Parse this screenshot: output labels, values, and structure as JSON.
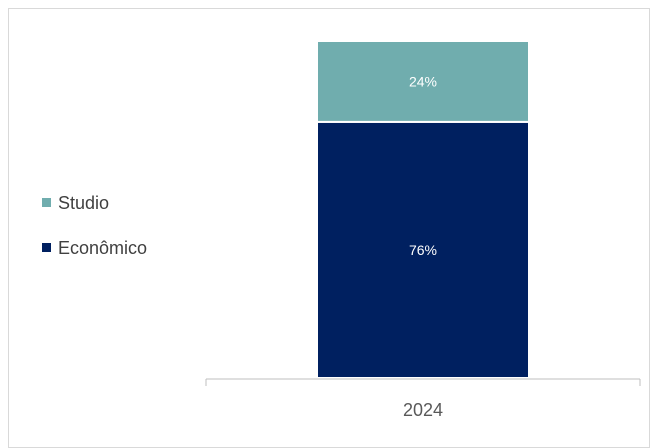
{
  "chart_data": {
    "type": "bar",
    "stacked": true,
    "percent": true,
    "categories": [
      "2024"
    ],
    "series": [
      {
        "name": "Econômico",
        "values": [
          76
        ],
        "label": "76%",
        "color": "#002060"
      },
      {
        "name": "Studio",
        "values": [
          24
        ],
        "label": "24%",
        "color": "#70ADAE"
      }
    ],
    "legend": {
      "position": "left",
      "order": [
        "Studio",
        "Econômico"
      ]
    },
    "ylim": [
      0,
      100
    ],
    "grid": false,
    "xlabel": "",
    "ylabel": ""
  }
}
